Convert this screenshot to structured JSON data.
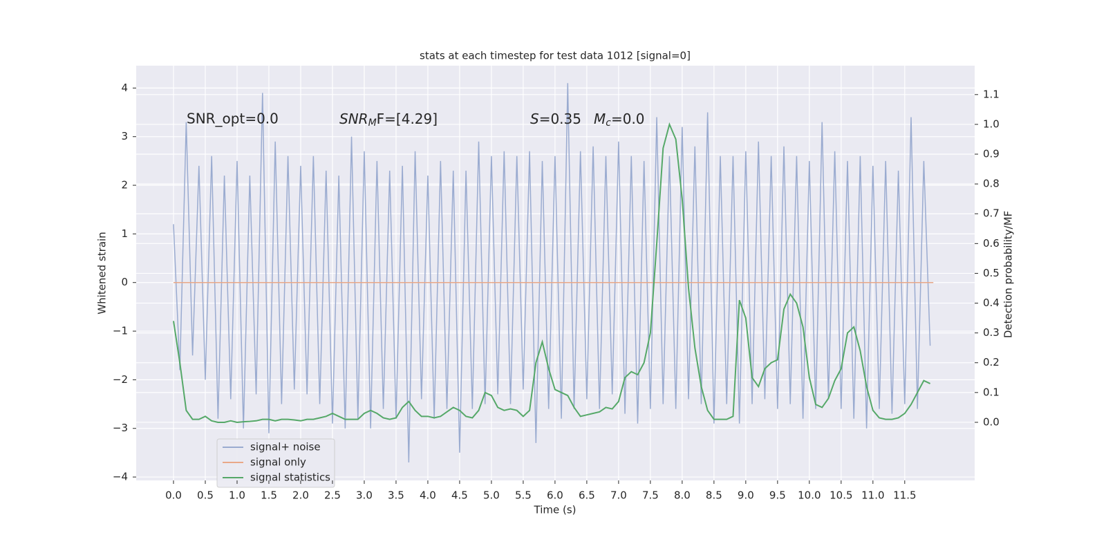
{
  "chart_data": {
    "type": "line",
    "title": "stats at each timestep for test data 1012 [signal=0]",
    "xlabel": "Time (s)",
    "ylabel": "Whitened strain",
    "y2label": "Detection probability/MF",
    "annotations": {
      "snr_opt": "SNR_opt=0.0",
      "snr_mf": [
        "SNR",
        "M",
        "F=[4.29]"
      ],
      "s": [
        "S",
        "=0.35"
      ],
      "mc": [
        "M",
        "c",
        "=0.0"
      ]
    },
    "legend": "lower left",
    "grid": true,
    "xlim": [
      -0.587,
      12.6
    ],
    "ylim": [
      -4.07,
      4.46
    ],
    "y2lim": [
      -0.195,
      1.197
    ],
    "xticks": [
      {
        "value": 0,
        "label": "0.0"
      },
      {
        "value": 0.5,
        "label": "0.5"
      },
      {
        "value": 1,
        "label": "1.0"
      },
      {
        "value": 1.5,
        "label": "1.5"
      },
      {
        "value": 2,
        "label": "2.0"
      },
      {
        "value": 2.5,
        "label": "2.5"
      },
      {
        "value": 3,
        "label": "3.0"
      },
      {
        "value": 3.5,
        "label": "3.5"
      },
      {
        "value": 4,
        "label": "4.0"
      },
      {
        "value": 4.5,
        "label": "4.5"
      },
      {
        "value": 5,
        "label": "5.0"
      },
      {
        "value": 5.5,
        "label": "5.5"
      },
      {
        "value": 6,
        "label": "6.0"
      },
      {
        "value": 6.5,
        "label": "6.5"
      },
      {
        "value": 7,
        "label": "7.0"
      },
      {
        "value": 7.5,
        "label": "7.5"
      },
      {
        "value": 8,
        "label": "8.0"
      },
      {
        "value": 8.5,
        "label": "8.5"
      },
      {
        "value": 9,
        "label": "9.0"
      },
      {
        "value": 9.5,
        "label": "9.5"
      },
      {
        "value": 10,
        "label": "10.0"
      },
      {
        "value": 10.5,
        "label": "10.5"
      },
      {
        "value": 11,
        "label": "11.0"
      },
      {
        "value": 11.5,
        "label": "11.5"
      }
    ],
    "yticks": [
      {
        "value": -4,
        "label": "−4"
      },
      {
        "value": -3,
        "label": "−3"
      },
      {
        "value": -2,
        "label": "−2"
      },
      {
        "value": -1,
        "label": "−1"
      },
      0,
      1,
      2,
      3,
      4
    ],
    "y2ticks": [
      {
        "value": 0,
        "label": "0.0"
      },
      {
        "value": 0.1,
        "label": "0.1"
      },
      {
        "value": 0.2,
        "label": "0.2"
      },
      {
        "value": 0.3,
        "label": "0.3"
      },
      {
        "value": 0.4,
        "label": "0.4"
      },
      {
        "value": 0.5,
        "label": "0.5"
      },
      {
        "value": 0.6,
        "label": "0.6"
      },
      {
        "value": 0.7,
        "label": "0.7"
      },
      {
        "value": 0.8,
        "label": "0.8"
      },
      {
        "value": 0.9,
        "label": "0.9"
      },
      {
        "value": 1,
        "label": "1.0"
      },
      {
        "value": 1.1,
        "label": "1.1"
      }
    ],
    "x": [
      0,
      0.1,
      0.2,
      0.3,
      0.4,
      0.5,
      0.6,
      0.7,
      0.8,
      0.9,
      1,
      1.1,
      1.2,
      1.3,
      1.4,
      1.5,
      1.6,
      1.7,
      1.8,
      1.9,
      2,
      2.1,
      2.2,
      2.3,
      2.4,
      2.5,
      2.6,
      2.7,
      2.8,
      2.9,
      3,
      3.1,
      3.2,
      3.3,
      3.4,
      3.5,
      3.6,
      3.7,
      3.8,
      3.9,
      4,
      4.1,
      4.2,
      4.3,
      4.4,
      4.5,
      4.6,
      4.7,
      4.8,
      4.9,
      5,
      5.1,
      5.2,
      5.3,
      5.4,
      5.5,
      5.6,
      5.7,
      5.8,
      5.9,
      6,
      6.1,
      6.2,
      6.3,
      6.4,
      6.5,
      6.6,
      6.7,
      6.8,
      6.9,
      7,
      7.1,
      7.2,
      7.3,
      7.4,
      7.5,
      7.6,
      7.7,
      7.8,
      7.9,
      8,
      8.1,
      8.2,
      8.3,
      8.4,
      8.5,
      8.6,
      8.7,
      8.8,
      8.9,
      9,
      9.1,
      9.2,
      9.3,
      9.4,
      9.5,
      9.6,
      9.7,
      9.8,
      9.9,
      10,
      10.1,
      10.2,
      10.3,
      10.4,
      10.5,
      10.6,
      10.7,
      10.8,
      10.9,
      11,
      11.1,
      11.2,
      11.3,
      11.4,
      11.5,
      11.6,
      11.7,
      11.8,
      11.9
    ],
    "series": [
      {
        "name": "signal+ noise",
        "color": "#9aabd0",
        "values": [
          1.2,
          -1.8,
          3.3,
          -1.5,
          2.4,
          -2.0,
          2.6,
          -2.8,
          2.2,
          -2.4,
          2.5,
          -3.0,
          2.2,
          -2.3,
          3.9,
          -3.1,
          2.9,
          -2.5,
          2.6,
          -2.2,
          2.4,
          -2.3,
          2.6,
          -2.5,
          2.3,
          -2.9,
          2.2,
          -3.0,
          3.0,
          -2.8,
          2.7,
          -3.0,
          2.5,
          -2.6,
          2.3,
          -2.8,
          2.4,
          -3.7,
          2.7,
          -2.4,
          2.2,
          -2.8,
          2.5,
          -2.6,
          2.3,
          -3.5,
          2.3,
          -2.6,
          2.9,
          -2.5,
          2.6,
          -2.3,
          2.7,
          -2.5,
          2.6,
          -2.2,
          2.7,
          -3.3,
          2.5,
          -2.6,
          2.6,
          -2.8,
          4.1,
          -2.6,
          2.7,
          -2.4,
          2.8,
          -2.6,
          2.6,
          -2.3,
          2.9,
          -2.7,
          2.6,
          -2.9,
          2.5,
          -2.6,
          3.4,
          -2.5,
          2.6,
          -2.6,
          3.2,
          -2.4,
          2.8,
          -2.5,
          3.5,
          -2.9,
          2.6,
          -2.5,
          2.6,
          -2.9,
          2.7,
          -2.5,
          2.9,
          -2.4,
          2.6,
          -2.6,
          2.8,
          -2.5,
          2.6,
          -2.8,
          2.5,
          -2.6,
          3.3,
          -2.4,
          2.7,
          -2.6,
          2.5,
          -2.8,
          2.6,
          -3.0,
          2.4,
          -2.6,
          2.5,
          -2.7,
          2.3,
          -2.5,
          3.4,
          -2.6,
          2.5,
          -1.3
        ]
      },
      {
        "name": "signal only",
        "color": "#e9a888",
        "x": [
          0,
          11.95
        ],
        "values": [
          0,
          0
        ]
      },
      {
        "name": "signal statistics",
        "color": "#55a868",
        "axis": "y2",
        "values": [
          0.34,
          0.2,
          0.04,
          0.01,
          0.01,
          0.02,
          0.005,
          0.0,
          0.0,
          0.005,
          0.0,
          0.002,
          0.003,
          0.005,
          0.01,
          0.01,
          0.005,
          0.01,
          0.01,
          0.008,
          0.005,
          0.01,
          0.01,
          0.015,
          0.02,
          0.03,
          0.02,
          0.01,
          0.01,
          0.01,
          0.03,
          0.04,
          0.03,
          0.015,
          0.01,
          0.015,
          0.05,
          0.07,
          0.04,
          0.02,
          0.02,
          0.015,
          0.02,
          0.035,
          0.05,
          0.04,
          0.02,
          0.015,
          0.04,
          0.1,
          0.09,
          0.05,
          0.04,
          0.045,
          0.04,
          0.02,
          0.04,
          0.2,
          0.27,
          0.18,
          0.11,
          0.1,
          0.09,
          0.05,
          0.02,
          0.025,
          0.03,
          0.035,
          0.05,
          0.045,
          0.07,
          0.15,
          0.17,
          0.16,
          0.2,
          0.3,
          0.6,
          0.92,
          1.0,
          0.95,
          0.75,
          0.45,
          0.25,
          0.12,
          0.04,
          0.01,
          0.01,
          0.01,
          0.02,
          0.41,
          0.35,
          0.15,
          0.12,
          0.18,
          0.2,
          0.21,
          0.38,
          0.43,
          0.4,
          0.32,
          0.15,
          0.06,
          0.05,
          0.08,
          0.14,
          0.18,
          0.3,
          0.32,
          0.24,
          0.12,
          0.04,
          0.015,
          0.01,
          0.01,
          0.015,
          0.03,
          0.06,
          0.1,
          0.14,
          0.13
        ]
      }
    ]
  }
}
